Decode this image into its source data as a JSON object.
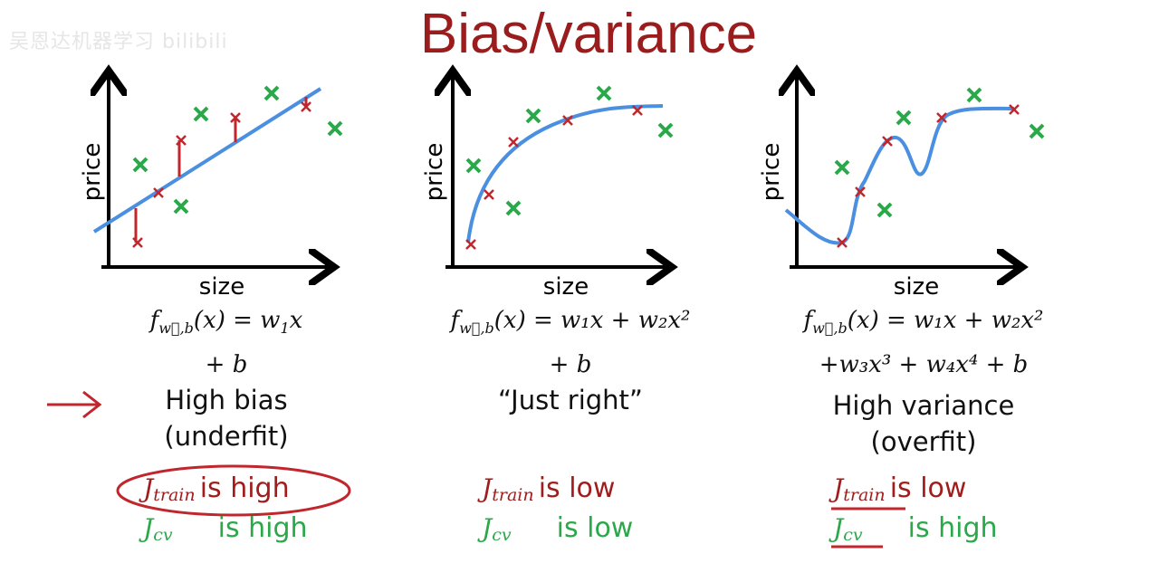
{
  "title": "Bias/variance",
  "watermark": "吴恩达机器学习 bilibili",
  "axes": {
    "y": "price",
    "x": "size"
  },
  "panels": [
    {
      "f": "f",
      "sub": "w⃗,b",
      "lhs": "(x) = w",
      "l1rest": "x",
      "l1b": "1",
      "line2": "+ b",
      "cap1": "High bias",
      "cap2": "(underfit)",
      "j1": "J",
      "j1s": "train",
      "j1t": "is high",
      "j2": "J",
      "j2s": "cv",
      "j2t": "is high"
    },
    {
      "f": "f",
      "sub": "w⃗,b",
      "line1": "(x) = w₁x + w₂x²",
      "line2": "+ b",
      "cap1": "“Just right”",
      "j1": "J",
      "j1s": "train",
      "j1t": "is low",
      "j2": "J",
      "j2s": "cv",
      "j2t": "is low"
    },
    {
      "f": "f",
      "sub": "w⃗,b",
      "line1": "(x) = w₁x + w₂x²",
      "line2": "+w₃x³ + w₄x⁴ + b",
      "cap1": "High variance",
      "cap2": "(overfit)",
      "j1": "J",
      "j1s": "train",
      "j1t": "is low",
      "j2": "J",
      "j2s": "cv",
      "j2t": "is high"
    }
  ],
  "colors": {
    "title": "#9b1c1c",
    "train": "#c0262c",
    "cv": "#2aa84a",
    "fit": "#4a8fe0"
  }
}
